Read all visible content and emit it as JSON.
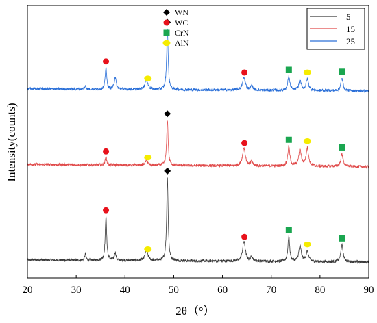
{
  "chart_data": {
    "type": "line",
    "title": "",
    "xlabel": "2θ（°）",
    "ylabel": "Intensity(counts)",
    "xlim": [
      20,
      90
    ],
    "xticks": [
      20,
      30,
      40,
      50,
      60,
      70,
      80,
      90
    ],
    "yticks_shown": false,
    "grid": false,
    "legend": {
      "placement": "top-right",
      "series_names": [
        "5",
        "15",
        "25"
      ]
    },
    "phase_legend": {
      "placement": "top-center",
      "entries": [
        {
          "name": "WN",
          "marker": "diamond",
          "color": "#000000"
        },
        {
          "name": "WC",
          "marker": "circle",
          "color": "#e8111b"
        },
        {
          "name": "CrN",
          "marker": "square",
          "color": "#1aa650"
        },
        {
          "name": "AlN",
          "marker": "ellipse",
          "color": "#f5ec00"
        }
      ]
    },
    "series": [
      {
        "name": "5",
        "color": "#3a3a3a",
        "baseline": 0.0,
        "noise": 0.025,
        "peaks": [
          {
            "x": 31.9,
            "h": 0.12,
            "w": 0.15
          },
          {
            "x": 36.1,
            "h": 0.8,
            "w": 0.18
          },
          {
            "x": 38.0,
            "h": 0.14,
            "w": 0.2
          },
          {
            "x": 44.4,
            "h": 0.18,
            "w": 0.35
          },
          {
            "x": 48.7,
            "h": 1.5,
            "w": 0.18
          },
          {
            "x": 64.4,
            "h": 0.35,
            "w": 0.35
          },
          {
            "x": 66.0,
            "h": 0.08,
            "w": 0.25
          },
          {
            "x": 73.6,
            "h": 0.45,
            "w": 0.22
          },
          {
            "x": 75.9,
            "h": 0.28,
            "w": 0.3
          },
          {
            "x": 77.4,
            "h": 0.18,
            "w": 0.3
          },
          {
            "x": 84.5,
            "h": 0.3,
            "w": 0.28
          }
        ],
        "markers": [
          {
            "x": 36.1,
            "marker": "WC"
          },
          {
            "x": 44.7,
            "marker": "AlN"
          },
          {
            "x": 48.7,
            "marker": "WN"
          },
          {
            "x": 64.5,
            "marker": "WC"
          },
          {
            "x": 73.6,
            "marker": "CrN"
          },
          {
            "x": 77.4,
            "marker": "AlN"
          },
          {
            "x": 84.5,
            "marker": "CrN"
          }
        ]
      },
      {
        "name": "15",
        "color": "#e04a4a",
        "baseline": 1.7,
        "noise": 0.025,
        "peaks": [
          {
            "x": 36.1,
            "h": 0.15,
            "w": 0.18
          },
          {
            "x": 44.4,
            "h": 0.08,
            "w": 0.3
          },
          {
            "x": 48.7,
            "h": 0.82,
            "w": 0.18
          },
          {
            "x": 64.4,
            "h": 0.32,
            "w": 0.35
          },
          {
            "x": 66.0,
            "h": 0.07,
            "w": 0.25
          },
          {
            "x": 73.6,
            "h": 0.35,
            "w": 0.25
          },
          {
            "x": 75.9,
            "h": 0.3,
            "w": 0.3
          },
          {
            "x": 77.4,
            "h": 0.32,
            "w": 0.3
          },
          {
            "x": 84.5,
            "h": 0.22,
            "w": 0.28
          }
        ],
        "markers": [
          {
            "x": 36.1,
            "marker": "WC"
          },
          {
            "x": 44.7,
            "marker": "AlN"
          },
          {
            "x": 48.7,
            "marker": "WN"
          },
          {
            "x": 64.5,
            "marker": "WC"
          },
          {
            "x": 73.6,
            "marker": "CrN"
          },
          {
            "x": 77.4,
            "marker": "AlN"
          },
          {
            "x": 84.5,
            "marker": "CrN"
          }
        ]
      },
      {
        "name": "25",
        "color": "#2a6fd8",
        "baseline": 3.05,
        "noise": 0.025,
        "peaks": [
          {
            "x": 31.9,
            "h": 0.05,
            "w": 0.2
          },
          {
            "x": 36.1,
            "h": 0.4,
            "w": 0.18
          },
          {
            "x": 38.0,
            "h": 0.22,
            "w": 0.22
          },
          {
            "x": 44.4,
            "h": 0.17,
            "w": 0.35
          },
          {
            "x": 48.7,
            "h": 1.1,
            "w": 0.18
          },
          {
            "x": 64.4,
            "h": 0.22,
            "w": 0.35
          },
          {
            "x": 66.0,
            "h": 0.08,
            "w": 0.25
          },
          {
            "x": 73.6,
            "h": 0.25,
            "w": 0.25
          },
          {
            "x": 75.9,
            "h": 0.17,
            "w": 0.3
          },
          {
            "x": 77.4,
            "h": 0.2,
            "w": 0.3
          },
          {
            "x": 84.5,
            "h": 0.22,
            "w": 0.28
          }
        ],
        "markers": [
          {
            "x": 36.1,
            "marker": "WC"
          },
          {
            "x": 44.7,
            "marker": "AlN"
          },
          {
            "x": 48.7,
            "marker": "WN"
          },
          {
            "x": 64.5,
            "marker": "WC"
          },
          {
            "x": 73.6,
            "marker": "CrN"
          },
          {
            "x": 77.4,
            "marker": "AlN"
          },
          {
            "x": 84.5,
            "marker": "CrN"
          }
        ]
      }
    ]
  }
}
